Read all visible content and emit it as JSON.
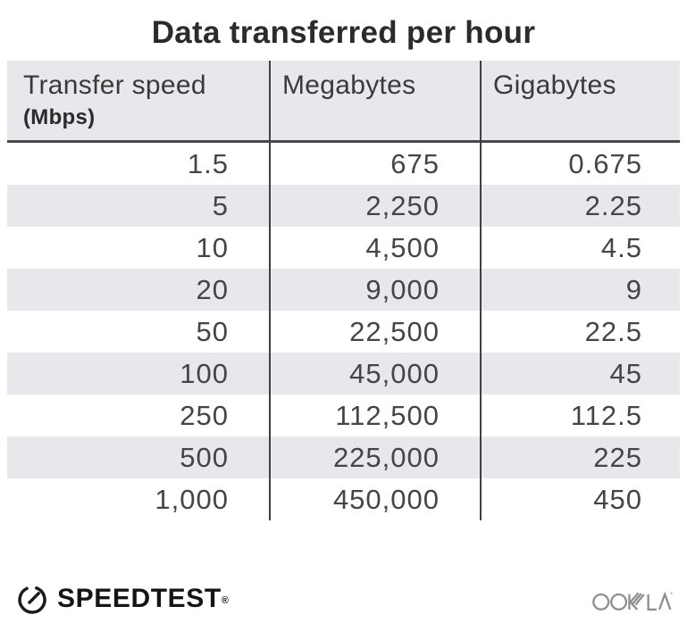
{
  "title": "Data transferred per hour",
  "chart_data": {
    "type": "table",
    "title": "Data transferred per hour",
    "columns": [
      "Transfer speed (Mbps)",
      "Megabytes",
      "Gigabytes"
    ],
    "rows_numeric": [
      [
        1.5,
        675,
        0.675
      ],
      [
        5,
        2250,
        2.25
      ],
      [
        10,
        4500,
        4.5
      ],
      [
        20,
        9000,
        9
      ],
      [
        50,
        22500,
        22.5
      ],
      [
        100,
        45000,
        45
      ],
      [
        250,
        112500,
        112.5
      ],
      [
        500,
        225000,
        225
      ],
      [
        1000,
        450000,
        450
      ]
    ]
  },
  "table": {
    "header": {
      "col1_label": "Transfer speed",
      "col1_sublabel": "(Mbps)",
      "col2_label": "Megabytes",
      "col3_label": "Gigabytes"
    },
    "rows": [
      [
        "1.5",
        "675",
        "0.675"
      ],
      [
        "5",
        "2,250",
        "2.25"
      ],
      [
        "10",
        "4,500",
        "4.5"
      ],
      [
        "20",
        "9,000",
        "9"
      ],
      [
        "50",
        "22,500",
        "22.5"
      ],
      [
        "100",
        "45,000",
        "45"
      ],
      [
        "250",
        "112,500",
        "112.5"
      ],
      [
        "500",
        "225,000",
        "225"
      ],
      [
        "1,000",
        "450,000",
        "450"
      ]
    ]
  },
  "footer": {
    "speedtest_label": "SPEEDTEST",
    "speedtest_mark": "®",
    "ookla_label": "OOKLA"
  },
  "colors": {
    "header_bg": "#e8e7eb",
    "row_alt_bg": "#e8e7ec",
    "rule_dark": "#48484e",
    "divider": "#3f3f45",
    "title_color": "#2b2b2b",
    "header_text": "#3a3a3a",
    "data_text": "#454545",
    "brand_black": "#151515",
    "ookla_gray": "#8e8e8e"
  }
}
